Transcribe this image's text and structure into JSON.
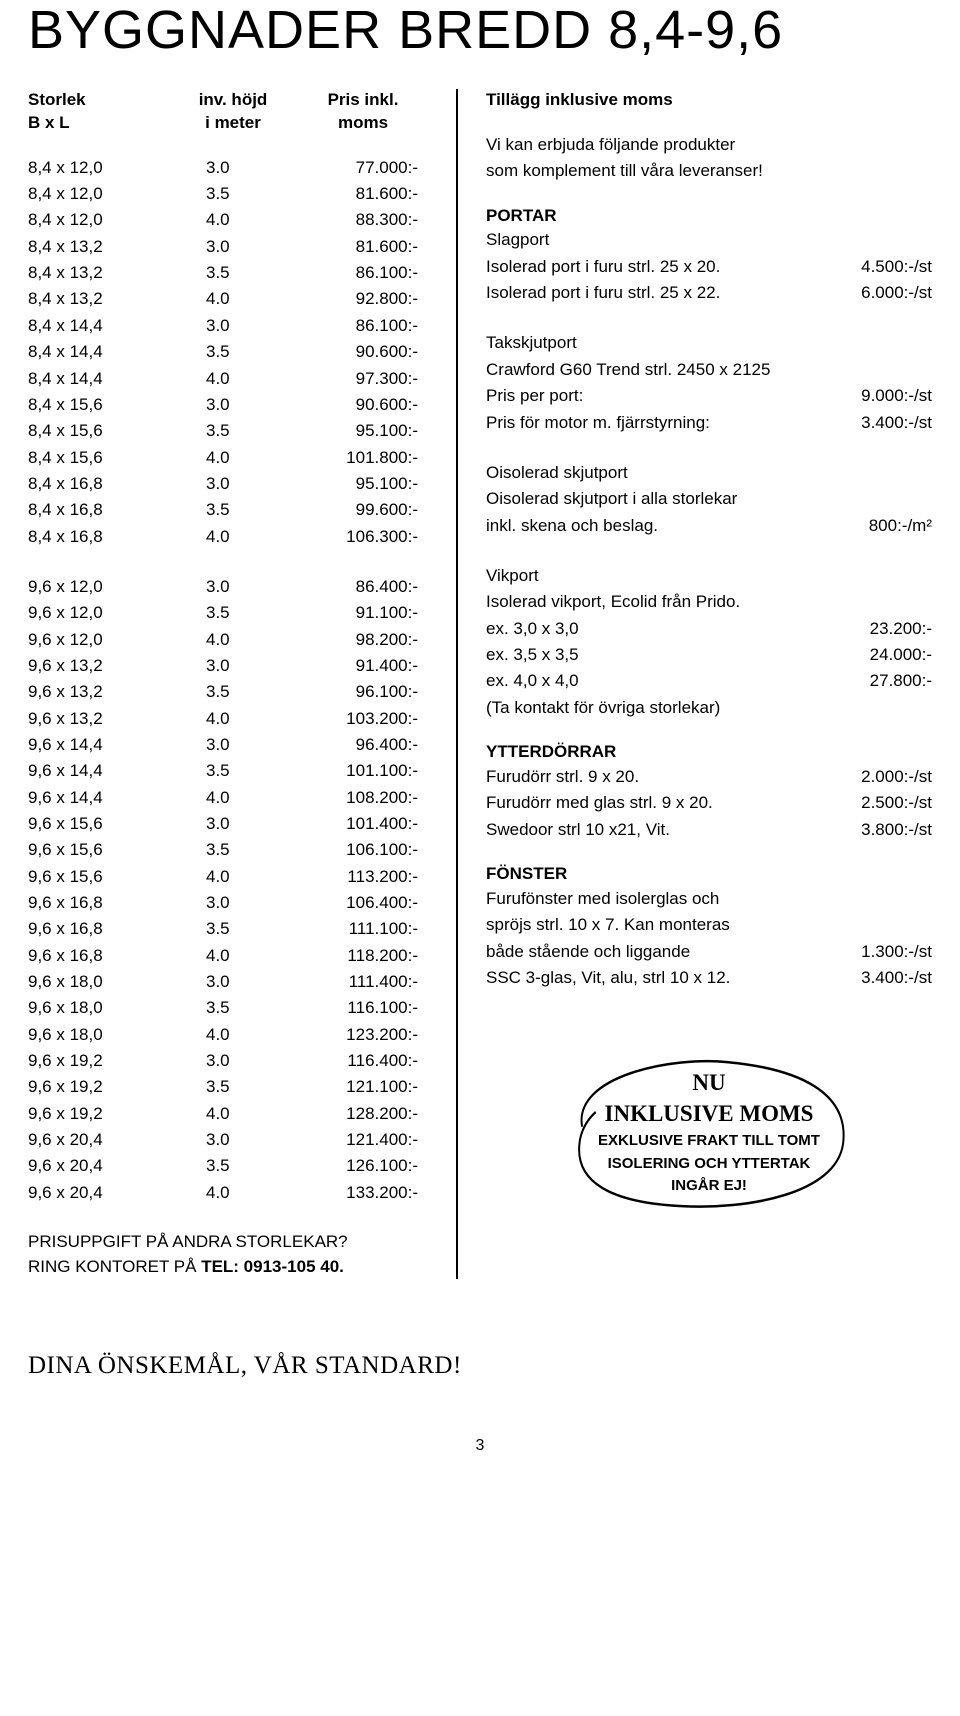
{
  "title": "BYGGNADER BREDD 8,4-9,6",
  "columns": {
    "c1a": "Storlek",
    "c1b": "B x L",
    "c2a": "inv. höjd",
    "c2b": "i meter",
    "c3a": "Pris inkl.",
    "c3b": "moms"
  },
  "prices1": [
    {
      "s": "8,4 x 12,0",
      "h": "3.0",
      "p": "77.000:-"
    },
    {
      "s": "8,4 x 12,0",
      "h": "3.5",
      "p": "81.600:-"
    },
    {
      "s": "8,4 x 12,0",
      "h": "4.0",
      "p": "88.300:-"
    },
    {
      "s": "8,4 x 13,2",
      "h": "3.0",
      "p": "81.600:-"
    },
    {
      "s": "8,4 x 13,2",
      "h": "3.5",
      "p": "86.100:-"
    },
    {
      "s": "8,4 x 13,2",
      "h": "4.0",
      "p": "92.800:-"
    },
    {
      "s": "8,4 x 14,4",
      "h": "3.0",
      "p": "86.100:-"
    },
    {
      "s": "8,4 x 14,4",
      "h": "3.5",
      "p": "90.600:-"
    },
    {
      "s": "8,4 x 14,4",
      "h": "4.0",
      "p": "97.300:-"
    },
    {
      "s": "8,4 x 15,6",
      "h": "3.0",
      "p": "90.600:-"
    },
    {
      "s": "8,4 x 15,6",
      "h": "3.5",
      "p": "95.100:-"
    },
    {
      "s": "8,4 x 15,6",
      "h": "4.0",
      "p": "101.800:-"
    },
    {
      "s": "8,4 x 16,8",
      "h": "3.0",
      "p": "95.100:-"
    },
    {
      "s": "8,4 x 16,8",
      "h": "3.5",
      "p": "99.600:-"
    },
    {
      "s": "8,4 x 16,8",
      "h": "4.0",
      "p": "106.300:-"
    }
  ],
  "prices2": [
    {
      "s": "9,6 x 12,0",
      "h": "3.0",
      "p": "86.400:-"
    },
    {
      "s": "9,6 x 12,0",
      "h": "3.5",
      "p": "91.100:-"
    },
    {
      "s": "9,6 x 12,0",
      "h": "4.0",
      "p": "98.200:-"
    },
    {
      "s": "9,6 x 13,2",
      "h": "3.0",
      "p": "91.400:-"
    },
    {
      "s": "9,6 x 13,2",
      "h": "3.5",
      "p": "96.100:-"
    },
    {
      "s": "9,6 x 13,2",
      "h": "4.0",
      "p": "103.200:-"
    },
    {
      "s": "9,6 x 14,4",
      "h": "3.0",
      "p": "96.400:-"
    },
    {
      "s": "9,6 x 14,4",
      "h": "3.5",
      "p": "101.100:-"
    },
    {
      "s": "9,6 x 14,4",
      "h": "4.0",
      "p": "108.200:-"
    },
    {
      "s": "9,6 x 15,6",
      "h": "3.0",
      "p": "101.400:-"
    },
    {
      "s": "9,6 x 15,6",
      "h": "3.5",
      "p": "106.100:-"
    },
    {
      "s": "9,6 x 15,6",
      "h": "4.0",
      "p": "113.200:-"
    },
    {
      "s": "9,6 x 16,8",
      "h": "3.0",
      "p": "106.400:-"
    },
    {
      "s": "9,6 x 16,8",
      "h": "3.5",
      "p": "111.100:-"
    },
    {
      "s": "9,6 x 16,8",
      "h": "4.0",
      "p": "118.200:-"
    },
    {
      "s": "9,6 x 18,0",
      "h": "3.0",
      "p": "111.400:-"
    },
    {
      "s": "9,6 x 18,0",
      "h": "3.5",
      "p": "116.100:-"
    },
    {
      "s": "9,6 x 18,0",
      "h": "4.0",
      "p": "123.200:-"
    },
    {
      "s": "9,6 x 19,2",
      "h": "3.0",
      "p": "116.400:-"
    },
    {
      "s": "9,6 x 19,2",
      "h": "3.5",
      "p": "121.100:-"
    },
    {
      "s": "9,6 x 19,2",
      "h": "4.0",
      "p": "128.200:-"
    },
    {
      "s": "9,6 x 20,4",
      "h": "3.0",
      "p": "121.400:-"
    },
    {
      "s": "9,6 x 20,4",
      "h": "3.5",
      "p": "126.100:-"
    },
    {
      "s": "9,6 x 20,4",
      "h": "4.0",
      "p": "133.200:-"
    }
  ],
  "footnote1": "PRISUPPGIFT PÅ ANDRA STORLEKAR?",
  "footnote2a": "RING KONTORET PÅ ",
  "footnote2b": "TEL: 0913-105 40.",
  "right_heading": "Tillägg inklusive moms",
  "intro1": "Vi kan erbjuda följande produkter",
  "intro2": "som komplement till våra leveranser!",
  "portar": {
    "h": "PORTAR",
    "l1": "Slagport",
    "r1": {
      "lbl": "Isolerad port i furu strl. 25 x 20.",
      "val": "4.500:-/st"
    },
    "r2": {
      "lbl": "Isolerad port i furu strl. 25 x 22.",
      "val": "6.000:-/st"
    },
    "t1": "Takskjutport",
    "t2": "Crawford G60 Trend strl. 2450 x 2125",
    "r3": {
      "lbl": "Pris per port:",
      "val": "9.000:-/st"
    },
    "r4": {
      "lbl": "Pris för motor m. fjärrstyrning:",
      "val": "3.400:-/st"
    },
    "o1": "Oisolerad skjutport",
    "o2": "Oisolerad skjutport i alla storlekar",
    "r5": {
      "lbl": "inkl. skena och beslag.",
      "val": "800:-/m²"
    },
    "v1": "Vikport",
    "v2": "Isolerad vikport, Ecolid från Prido.",
    "r6": {
      "lbl": "ex. 3,0 x 3,0",
      "val": "23.200:-"
    },
    "r7": {
      "lbl": "ex. 3,5 x 3,5",
      "val": "24.000:-"
    },
    "r8": {
      "lbl": "ex. 4,0 x 4,0",
      "val": "27.800:-"
    },
    "v3": "(Ta kontakt för övriga storlekar)"
  },
  "ytter": {
    "h": "YTTERDÖRRAR",
    "r1": {
      "lbl": "Furudörr strl. 9 x 20.",
      "val": "2.000:-/st"
    },
    "r2": {
      "lbl": "Furudörr med glas strl. 9 x 20.",
      "val": "2.500:-/st"
    },
    "r3": {
      "lbl": "Swedoor strl 10 x21, Vit.",
      "val": "3.800:-/st"
    }
  },
  "fonster": {
    "h": "FÖNSTER",
    "l1": "Furufönster med isolerglas och",
    "l2": "spröjs strl. 10 x 7. Kan monteras",
    "r1": {
      "lbl": "både stående och liggande",
      "val": "1.300:-/st"
    },
    "r2": {
      "lbl": "SSC 3-glas, Vit, alu, strl 10 x 12.",
      "val": "3.400:-/st"
    }
  },
  "callout": {
    "l1": "NU",
    "l2": "INKLUSIVE MOMS",
    "l3": "EXKLUSIVE FRAKT TILL TOMT",
    "l4": "ISOLERING OCH YTTERTAK",
    "l5": "INGÅR EJ!"
  },
  "tagline": "DINA ÖNSKEMÅL, VÅR STANDARD!",
  "pagenum": "3"
}
